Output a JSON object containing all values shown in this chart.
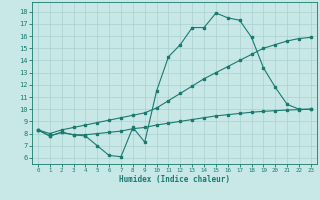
{
  "line1_x": [
    0,
    1,
    2,
    3,
    4,
    5,
    6,
    7,
    8,
    9,
    10,
    11,
    12,
    13,
    14,
    15,
    16,
    17,
    18,
    19,
    20,
    21,
    22,
    23
  ],
  "line1_y": [
    8.3,
    7.8,
    8.1,
    7.9,
    7.8,
    7.0,
    6.2,
    6.1,
    8.5,
    7.3,
    11.5,
    14.3,
    15.3,
    16.7,
    16.7,
    17.9,
    17.5,
    17.3,
    15.9,
    13.4,
    11.8,
    10.4,
    10.0,
    10.0
  ],
  "line2_x": [
    0,
    1,
    2,
    3,
    4,
    5,
    6,
    7,
    8,
    9,
    10,
    11,
    12,
    13,
    14,
    15,
    16,
    17,
    18,
    19,
    20,
    21,
    22,
    23
  ],
  "line2_y": [
    8.3,
    8.0,
    8.3,
    8.5,
    8.7,
    8.9,
    9.1,
    9.3,
    9.5,
    9.7,
    10.1,
    10.7,
    11.3,
    11.9,
    12.5,
    13.0,
    13.5,
    14.0,
    14.5,
    15.0,
    15.3,
    15.6,
    15.8,
    15.9
  ],
  "line3_x": [
    0,
    1,
    2,
    3,
    4,
    5,
    6,
    7,
    8,
    9,
    10,
    11,
    12,
    13,
    14,
    15,
    16,
    17,
    18,
    19,
    20,
    21,
    22,
    23
  ],
  "line3_y": [
    8.3,
    7.8,
    8.1,
    7.9,
    7.9,
    8.0,
    8.1,
    8.2,
    8.4,
    8.5,
    8.7,
    8.85,
    9.0,
    9.15,
    9.3,
    9.45,
    9.55,
    9.65,
    9.75,
    9.82,
    9.88,
    9.93,
    9.96,
    10.0
  ],
  "line_color": "#1a7a6e",
  "bg_color": "#c8e8e8",
  "grid_color": "#aacfcf",
  "xlabel": "Humidex (Indice chaleur)",
  "yticks": [
    6,
    7,
    8,
    9,
    10,
    11,
    12,
    13,
    14,
    15,
    16,
    17,
    18
  ],
  "ylim": [
    5.5,
    18.8
  ],
  "xlim": [
    -0.5,
    23.5
  ],
  "xticks": [
    0,
    1,
    2,
    3,
    4,
    5,
    6,
    7,
    8,
    9,
    10,
    11,
    12,
    13,
    14,
    15,
    16,
    17,
    18,
    19,
    20,
    21,
    22,
    23
  ]
}
